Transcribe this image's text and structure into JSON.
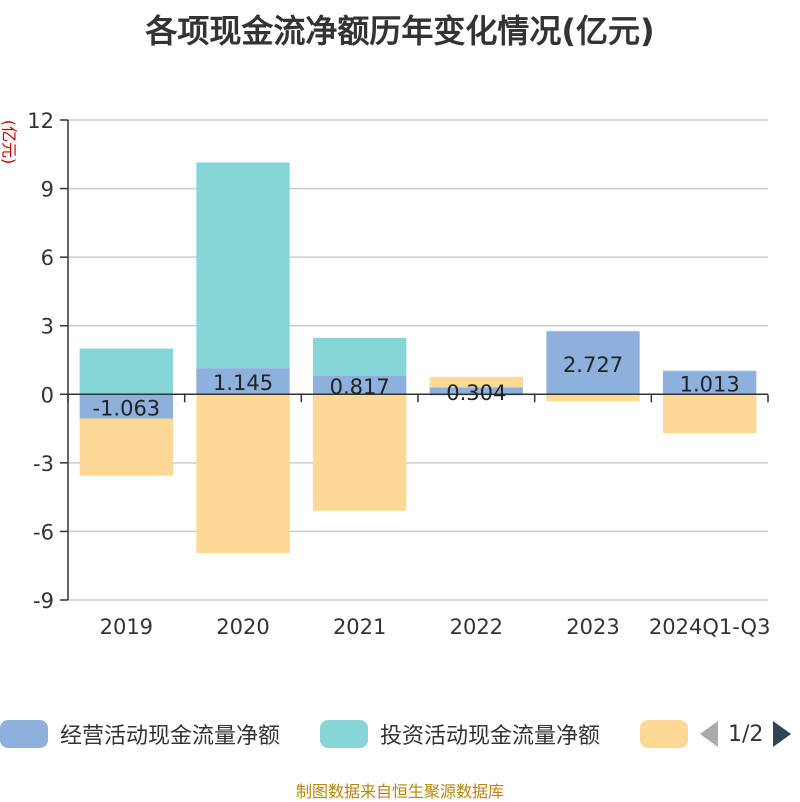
{
  "chart_data": {
    "type": "bar",
    "stacked": true,
    "title": "各项现金流净额历年变化情况(亿元)",
    "ylabel": "(亿元)",
    "ylim": [
      -9,
      12
    ],
    "yticks": [
      12,
      9,
      6,
      3,
      0,
      -3,
      -6,
      -9
    ],
    "categories": [
      "2019",
      "2020",
      "2021",
      "2022",
      "2023",
      "2024Q1-Q3"
    ],
    "series": [
      {
        "name": "经营活动现金流量净额",
        "color": "#8eb0dc",
        "values": [
          -1.063,
          1.145,
          0.817,
          0.304,
          2.727,
          1.013
        ],
        "labels": [
          "-1.063",
          "1.145",
          "0.817",
          "0.304",
          "2.727",
          "1.013"
        ]
      },
      {
        "name": "投资活动现金流量净额",
        "color": "#86d6d8",
        "values": [
          2.0,
          9.0,
          1.65,
          -0.05,
          0.05,
          0.02
        ]
      },
      {
        "name": "",
        "color": "#fdd896",
        "values": [
          -2.5,
          -6.95,
          -5.1,
          0.45,
          -0.3,
          -1.7
        ]
      }
    ],
    "legend_page": "1/2",
    "source": "制图数据来自恒生聚源数据库"
  }
}
